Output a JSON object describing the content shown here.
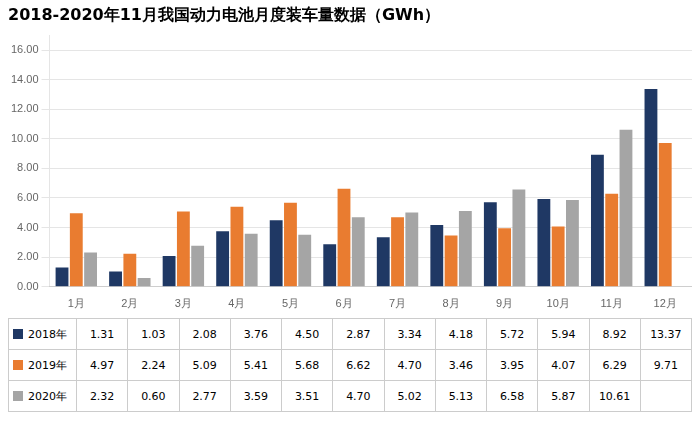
{
  "chart_data": {
    "type": "bar",
    "title": "2018-2020年11月我国动力电池月度装车量数据（GWh）",
    "categories": [
      "1月",
      "2月",
      "3月",
      "4月",
      "5月",
      "6月",
      "7月",
      "8月",
      "9月",
      "10月",
      "11月",
      "12月"
    ],
    "series": [
      {
        "name": "2018年",
        "color": "#1F3864",
        "values": [
          1.31,
          1.03,
          2.08,
          3.76,
          4.5,
          2.87,
          3.34,
          4.18,
          5.72,
          5.94,
          8.92,
          13.37
        ],
        "value_labels": [
          "1.31",
          "1.03",
          "2.08",
          "3.76",
          "4.50",
          "2.87",
          "3.34",
          "4.18",
          "5.72",
          "5.94",
          "8.92",
          "13.37"
        ]
      },
      {
        "name": "2019年",
        "color": "#E97C30",
        "values": [
          4.97,
          2.24,
          5.09,
          5.41,
          5.68,
          6.62,
          4.7,
          3.46,
          3.95,
          4.07,
          6.29,
          9.71
        ],
        "value_labels": [
          "4.97",
          "2.24",
          "5.09",
          "5.41",
          "5.68",
          "6.62",
          "4.70",
          "3.46",
          "3.95",
          "4.07",
          "6.29",
          "9.71"
        ]
      },
      {
        "name": "2020年",
        "color": "#A5A5A5",
        "values": [
          2.32,
          0.6,
          2.77,
          3.59,
          3.51,
          4.7,
          5.02,
          5.13,
          6.58,
          5.87,
          10.61,
          null
        ],
        "value_labels": [
          "2.32",
          "0.60",
          "2.77",
          "3.59",
          "3.51",
          "4.70",
          "5.02",
          "5.13",
          "6.58",
          "5.87",
          "10.61",
          null
        ]
      }
    ],
    "ylim": [
      0,
      17
    ],
    "yticks": [
      {
        "value": 0,
        "label": "0.00"
      },
      {
        "value": 2,
        "label": "2.00"
      },
      {
        "value": 4,
        "label": "4.00"
      },
      {
        "value": 6,
        "label": "6.00"
      },
      {
        "value": 8,
        "label": "8.00"
      },
      {
        "value": 10,
        "label": "10.00"
      },
      {
        "value": 12,
        "label": "12.00"
      },
      {
        "value": 14,
        "label": "14.00"
      },
      {
        "value": 16,
        "label": "16.00"
      }
    ],
    "grid": true
  }
}
